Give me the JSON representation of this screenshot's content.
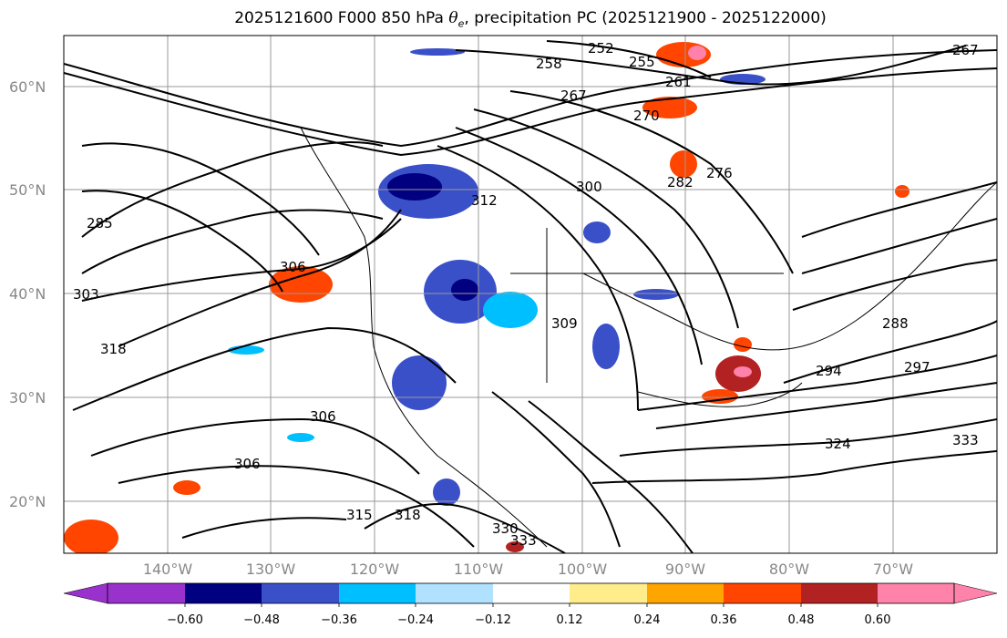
{
  "title": {
    "prefix": "2025121600 F000 850 hPa ",
    "symbol": "θ",
    "subscript": "e",
    "suffix": ", precipitation PC (2025121900 - 2025122000)"
  },
  "map": {
    "lat_labels": [
      "60°N",
      "50°N",
      "40°N",
      "30°N",
      "20°N"
    ],
    "lat_values": [
      60,
      50,
      40,
      30,
      20
    ],
    "lon_labels": [
      "140°W",
      "130°W",
      "120°W",
      "110°W",
      "100°W",
      "90°W",
      "80°W",
      "70°W"
    ],
    "lon_values": [
      -140,
      -130,
      -120,
      -110,
      -100,
      -90,
      -80,
      -70
    ],
    "extent": {
      "lon_min": -150,
      "lon_max": -60,
      "lat_min": 15,
      "lat_max": 65
    },
    "gridlines": true,
    "contour_labels": [
      "252",
      "258",
      "255",
      "261",
      "267",
      "267",
      "270",
      "276",
      "282",
      "285",
      "288",
      "294",
      "297",
      "300",
      "303",
      "306",
      "306",
      "306",
      "309",
      "312",
      "315",
      "318",
      "318",
      "330",
      "333",
      "333",
      "324"
    ]
  },
  "colorbar": {
    "tick_labels": [
      "−0.60",
      "−0.48",
      "−0.36",
      "−0.24",
      "−0.12",
      "0.12",
      "0.24",
      "0.36",
      "0.48",
      "0.60"
    ],
    "colors": [
      "#9932cc",
      "#000080",
      "#3a50c8",
      "#00bfff",
      "#b0e2ff",
      "#ffffff",
      "#ffec8b",
      "#ffa500",
      "#ff4500",
      "#b22222",
      "#ff82ab"
    ]
  }
}
